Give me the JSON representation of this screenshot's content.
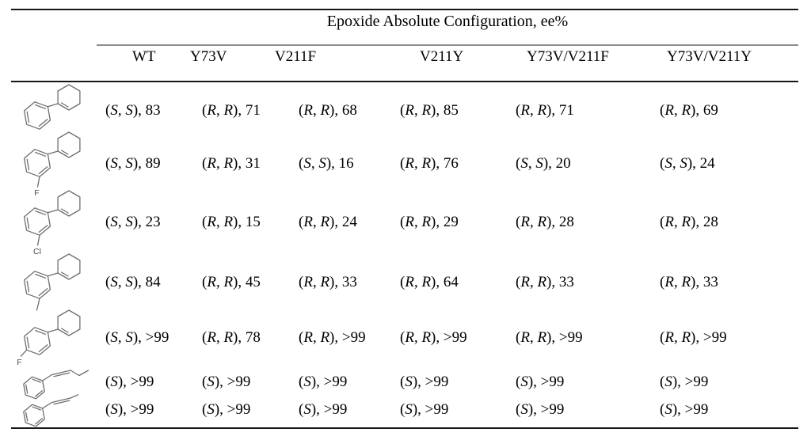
{
  "table": {
    "title": "Epoxide Absolute Configuration, ee%",
    "columns": [
      "WT",
      "Y73V",
      "V211F",
      "V211Y",
      "Y73V/V211F",
      "Y73V/V211Y"
    ],
    "rows": [
      {
        "substrate": {
          "name": "1-phenylcyclohexene",
          "label": ""
        },
        "values": [
          "(S, S), 83",
          "(R, R), 71",
          "(R, R), 68",
          "(R, R), 85",
          "(R, R), 71",
          "(R, R), 69"
        ]
      },
      {
        "substrate": {
          "name": "1-(3-fluorophenyl)cyclohexene",
          "label": "F"
        },
        "values": [
          "(S, S), 89",
          "(R, R), 31",
          "(S, S), 16",
          "(R, R), 76",
          "(S, S), 20",
          "(S, S), 24"
        ]
      },
      {
        "substrate": {
          "name": "1-(3-chlorophenyl)cyclohexene",
          "label": "Cl"
        },
        "values": [
          "(S, S), 23",
          "(R, R), 15",
          "(R, R), 24",
          "(R, R), 29",
          "(R, R), 28",
          "(R, R), 28"
        ]
      },
      {
        "substrate": {
          "name": "1-(3-methylphenyl)cyclohexene",
          "label": ""
        },
        "values": [
          "(S, S), 84",
          "(R, R), 45",
          "(R, R), 33",
          "(R, R), 64",
          "(R, R), 33",
          "(R, R), 33"
        ]
      },
      {
        "substrate": {
          "name": "1-(4-fluorophenyl)cyclohexene",
          "label": "F"
        },
        "values": [
          "(S, S), >99",
          "(R, R), 78",
          "(R, R), >99",
          "(R, R), >99",
          "(R, R), >99",
          "(R, R), >99"
        ]
      },
      {
        "substrate": {
          "name": "(E)-1-phenyl-1-butene",
          "label": ""
        },
        "values": [
          "(S), >99",
          "(S), >99",
          "(S), >99",
          "(S), >99",
          "(S), >99",
          "(S), >99"
        ]
      },
      {
        "substrate": {
          "name": "(E)-1-phenyl-1-propene",
          "label": ""
        },
        "values": [
          "(S), >99",
          "(S), >99",
          "(S), >99",
          "(S), >99",
          "(S), >99",
          "(S), >99"
        ]
      }
    ]
  }
}
